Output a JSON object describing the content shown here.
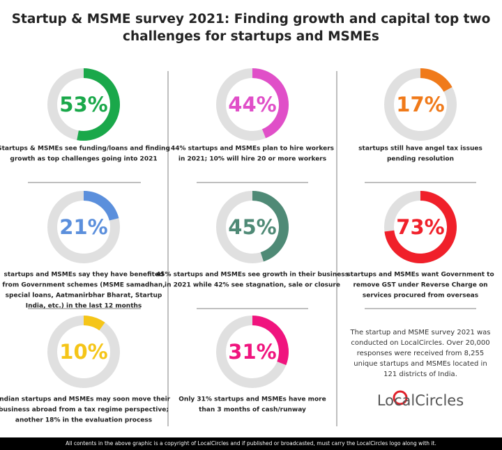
{
  "title": [
    "Startup & MSME survey 2021: Finding growth and capital top two",
    "challenges for startups and MSMEs"
  ],
  "chart_data": [
    {
      "type": "donut",
      "values": [
        53
      ],
      "value_labels": [
        "53%"
      ],
      "color": "#1aa84a",
      "caption": [
        "Startups & MSMEs see funding/loans and finding",
        "growth as top challenges going into 2021"
      ]
    },
    {
      "type": "donut",
      "values": [
        44
      ],
      "value_labels": [
        "44%"
      ],
      "color": "#e04fc8",
      "caption": [
        "44% startups and MSMEs plan to hire workers",
        "in 2021; 10% will hire 20 or more workers"
      ]
    },
    {
      "type": "donut",
      "values": [
        17
      ],
      "value_labels": [
        "17%"
      ],
      "color": "#f07a1a",
      "caption": [
        "startups still have angel tax issues",
        "pending resolution"
      ]
    },
    {
      "type": "donut",
      "values": [
        21
      ],
      "value_labels": [
        "21%"
      ],
      "color": "#5b8fdc",
      "caption": [
        "startups and MSMEs say they have benefited",
        "from Government schemes (MSME samadhan,",
        "special loans, Aatmanirbhar Bharat, Startup",
        "India, etc.) in the last 12 months"
      ]
    },
    {
      "type": "donut",
      "values": [
        45
      ],
      "value_labels": [
        "45%"
      ],
      "color": "#4f8a76",
      "caption": [
        "45% startups and MSMEs see growth in their business",
        "in 2021 while 42% see stagnation, sale or closure"
      ]
    },
    {
      "type": "donut",
      "values": [
        73
      ],
      "value_labels": [
        "73%"
      ],
      "color": "#f0202a",
      "caption": [
        "startups and MSMEs want Government to",
        "remove GST under Reverse Charge on",
        "services procured from overseas"
      ]
    },
    {
      "type": "donut",
      "values": [
        10
      ],
      "value_labels": [
        "10%"
      ],
      "color": "#f5c518",
      "caption": [
        "Indian startups and MSMEs may soon move their",
        "business abroad from a tax regime perspective;",
        "another 18% in the evaluation process"
      ]
    },
    {
      "type": "donut",
      "values": [
        31
      ],
      "value_labels": [
        "31%"
      ],
      "color": "#f0147e",
      "caption": [
        "Only 31% startups and MSMEs have more",
        "than 3 months of cash/runway"
      ]
    }
  ],
  "note": [
    "The startup and MSME survey 2021 was",
    "conducted on LocalCircles. Over 20,000",
    "responses were received from 8,255",
    "unique startups and MSMEs located in",
    "121 districts of India."
  ],
  "logo": "LocalCircles",
  "footer": "All contents in the above graphic is a copyright of LocalCircles and if published or broadcasted, must carry the LocalCircles logo along with it."
}
